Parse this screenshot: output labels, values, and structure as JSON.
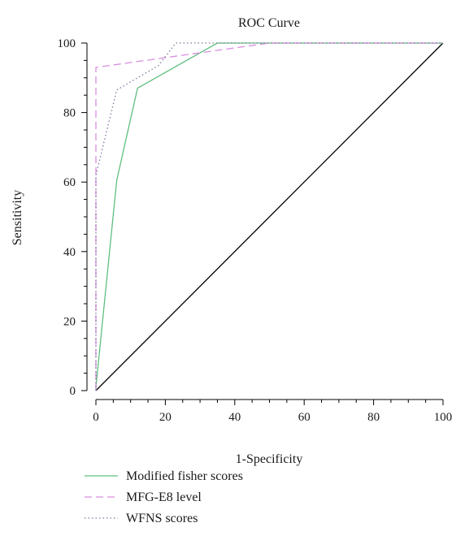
{
  "chart_data": {
    "type": "line",
    "title": "ROC Curve",
    "xlabel": "1-Specificity",
    "ylabel": "Sensitivity",
    "xlim": [
      0,
      100
    ],
    "ylim": [
      0,
      100
    ],
    "x_ticks": [
      0,
      20,
      40,
      60,
      80,
      100
    ],
    "y_ticks": [
      0,
      20,
      40,
      60,
      80,
      100
    ],
    "grid": false,
    "legend_position": "bottom",
    "reference_line": {
      "x": [
        0,
        100
      ],
      "y": [
        0,
        100
      ],
      "color": "#000000"
    },
    "series": [
      {
        "name": "Modified fisher scores",
        "color": "#5fbf7f",
        "style": "solid",
        "points": [
          [
            0,
            0
          ],
          [
            0,
            1
          ],
          [
            6,
            60.5
          ],
          [
            12,
            87
          ],
          [
            35,
            100
          ],
          [
            100,
            100
          ]
        ]
      },
      {
        "name": "MFG-E8 level",
        "color": "#d98ee0",
        "style": "dashed",
        "points": [
          [
            0,
            0
          ],
          [
            0,
            93
          ],
          [
            50,
            100
          ],
          [
            100,
            100
          ]
        ]
      },
      {
        "name": "WFNS scores",
        "color": "#7a7a9a",
        "style": "dotted",
        "points": [
          [
            0,
            0
          ],
          [
            0,
            62
          ],
          [
            6,
            86.5
          ],
          [
            18,
            93.5
          ],
          [
            23,
            100
          ],
          [
            100,
            100
          ]
        ]
      }
    ]
  }
}
